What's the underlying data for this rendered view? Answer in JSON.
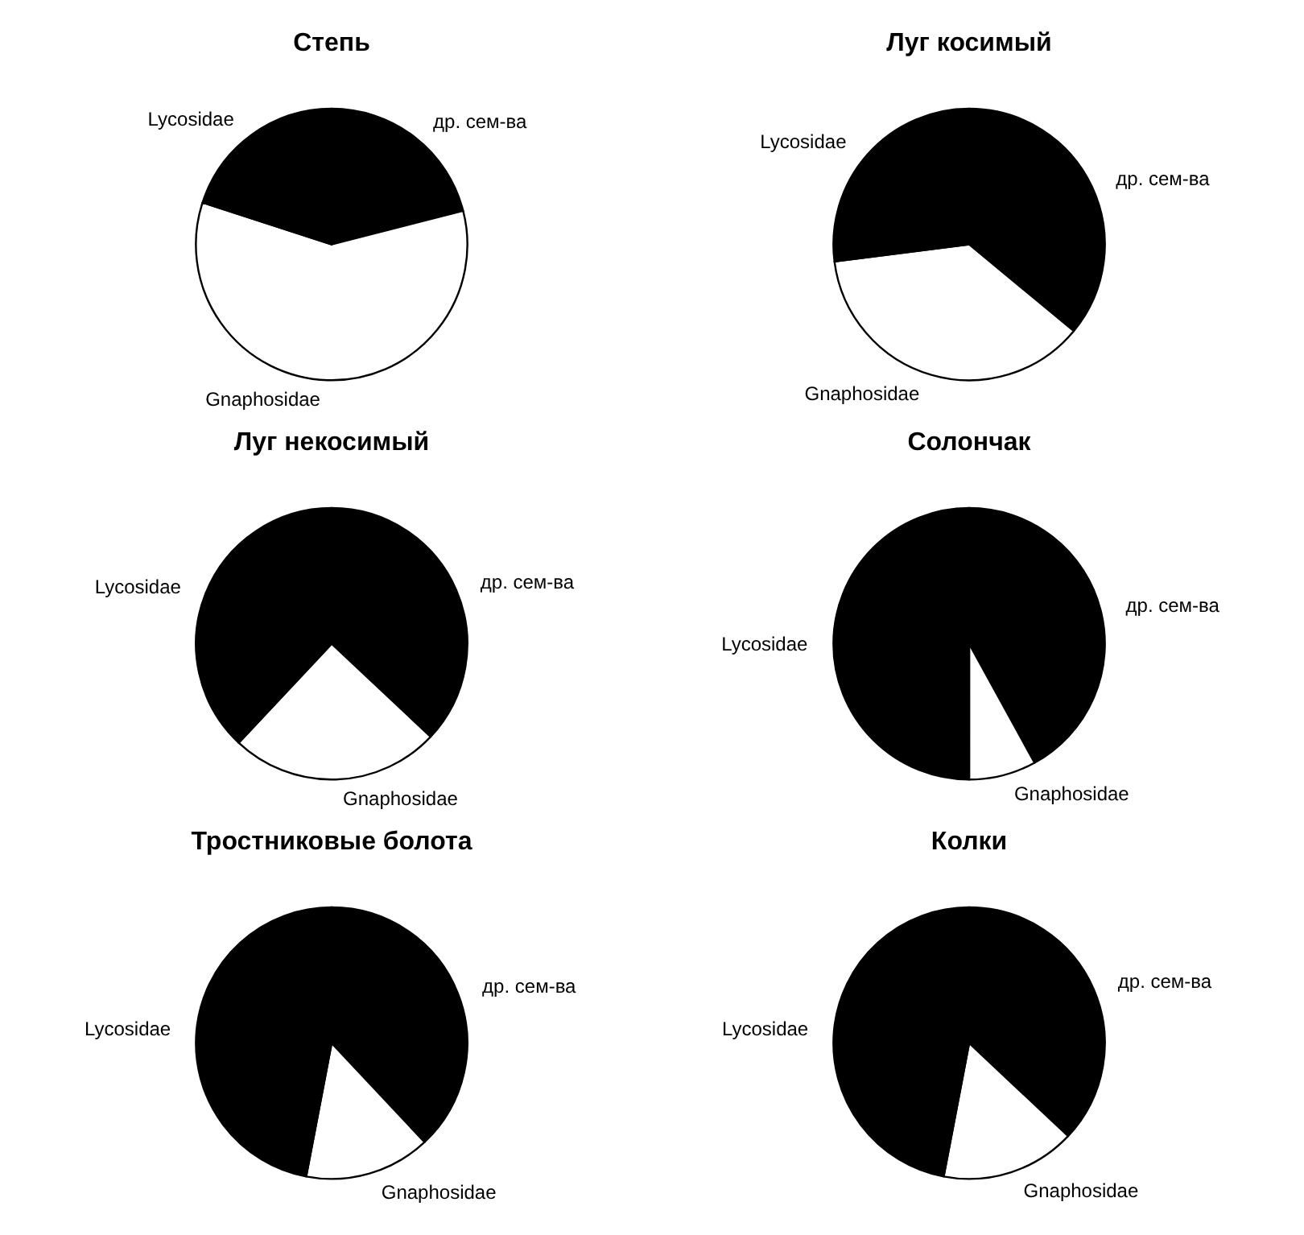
{
  "chart_data": [
    {
      "type": "pie",
      "title": "Степь",
      "categories": [
        "др. сем-ва",
        "Gnaphosidae",
        "Lycosidae"
      ],
      "values": [
        21,
        59,
        20
      ],
      "colors": [
        "#000000",
        "#ffffff",
        "#000000"
      ]
    },
    {
      "type": "pie",
      "title": "Луг косимый",
      "categories": [
        "др. сем-ва",
        "Gnaphosidae",
        "Lycosidae"
      ],
      "values": [
        36,
        37,
        27
      ],
      "colors": [
        "#000000",
        "#ffffff",
        "#000000"
      ]
    },
    {
      "type": "pie",
      "title": "Луг некосимый",
      "categories": [
        "др. сем-ва",
        "Gnaphosidae",
        "Lycosidae"
      ],
      "values": [
        37,
        25,
        38
      ],
      "colors": [
        "#000000",
        "#ffffff",
        "#000000"
      ]
    },
    {
      "type": "pie",
      "title": "Солончак",
      "categories": [
        "др. сем-ва",
        "Gnaphosidae",
        "Lycosidae"
      ],
      "values": [
        42,
        8,
        50
      ],
      "colors": [
        "#000000",
        "#ffffff",
        "#000000"
      ]
    },
    {
      "type": "pie",
      "title": "Тростниковые болота",
      "categories": [
        "др. сем-ва",
        "Gnaphosidae",
        "Lycosidae"
      ],
      "values": [
        38,
        15,
        47
      ],
      "colors": [
        "#000000",
        "#ffffff",
        "#000000"
      ]
    },
    {
      "type": "pie",
      "title": "Колки",
      "categories": [
        "др. сем-ва",
        "Gnaphosidae",
        "Lycosidae"
      ],
      "values": [
        37,
        16,
        47
      ],
      "colors": [
        "#000000",
        "#ffffff",
        "#000000"
      ]
    }
  ]
}
